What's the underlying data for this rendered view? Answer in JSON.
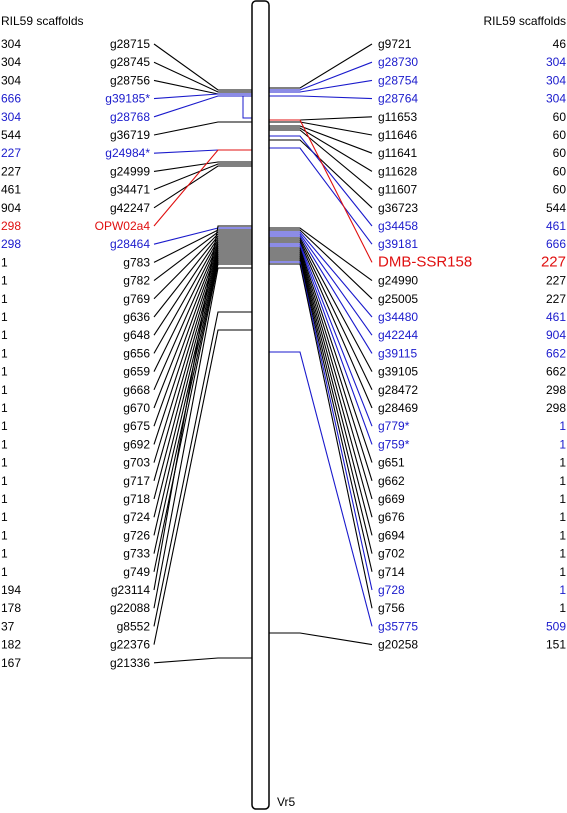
{
  "header": {
    "left": "RIL59 scaffolds",
    "right": "RIL59 scaffolds"
  },
  "chromosome_label": "Vr5",
  "colors": {
    "default": "#000000",
    "blue": "#1a1acc",
    "red": "#e01010"
  },
  "left_markers": [
    {
      "scaffold": "304",
      "marker": "g28715",
      "color": "default"
    },
    {
      "scaffold": "304",
      "marker": "g28745",
      "color": "default"
    },
    {
      "scaffold": "304",
      "marker": "g28756",
      "color": "default"
    },
    {
      "scaffold": "666",
      "marker": "g39185*",
      "color": "blue"
    },
    {
      "scaffold": "304",
      "marker": "g28768",
      "color": "blue"
    },
    {
      "scaffold": "544",
      "marker": "g36719",
      "color": "default"
    },
    {
      "scaffold": "227",
      "marker": "g24984*",
      "color": "blue"
    },
    {
      "scaffold": "227",
      "marker": "g24999",
      "color": "default"
    },
    {
      "scaffold": "461",
      "marker": "g34471",
      "color": "default"
    },
    {
      "scaffold": "904",
      "marker": "g42247",
      "color": "default"
    },
    {
      "scaffold": "298",
      "marker": "OPW02a4",
      "color": "red"
    },
    {
      "scaffold": "298",
      "marker": "g28464",
      "color": "blue"
    },
    {
      "scaffold": "1",
      "marker": "g783",
      "color": "default"
    },
    {
      "scaffold": "1",
      "marker": "g782",
      "color": "default"
    },
    {
      "scaffold": "1",
      "marker": "g769",
      "color": "default"
    },
    {
      "scaffold": "1",
      "marker": "g636",
      "color": "default"
    },
    {
      "scaffold": "1",
      "marker": "g648",
      "color": "default"
    },
    {
      "scaffold": "1",
      "marker": "g656",
      "color": "default"
    },
    {
      "scaffold": "1",
      "marker": "g659",
      "color": "default"
    },
    {
      "scaffold": "1",
      "marker": "g668",
      "color": "default"
    },
    {
      "scaffold": "1",
      "marker": "g670",
      "color": "default"
    },
    {
      "scaffold": "1",
      "marker": "g675",
      "color": "default"
    },
    {
      "scaffold": "1",
      "marker": "g692",
      "color": "default"
    },
    {
      "scaffold": "1",
      "marker": "g703",
      "color": "default"
    },
    {
      "scaffold": "1",
      "marker": "g717",
      "color": "default"
    },
    {
      "scaffold": "1",
      "marker": "g718",
      "color": "default"
    },
    {
      "scaffold": "1",
      "marker": "g724",
      "color": "default"
    },
    {
      "scaffold": "1",
      "marker": "g726",
      "color": "default"
    },
    {
      "scaffold": "1",
      "marker": "g733",
      "color": "default"
    },
    {
      "scaffold": "1",
      "marker": "g749",
      "color": "default"
    },
    {
      "scaffold": "194",
      "marker": "g23114",
      "color": "default"
    },
    {
      "scaffold": "178",
      "marker": "g22088",
      "color": "default"
    },
    {
      "scaffold": "37",
      "marker": "g8552",
      "color": "default"
    },
    {
      "scaffold": "182",
      "marker": "g22376",
      "color": "default"
    },
    {
      "scaffold": "167",
      "marker": "g21336",
      "color": "default"
    }
  ],
  "right_markers": [
    {
      "marker": "g9721",
      "scaffold": "46",
      "color": "default"
    },
    {
      "marker": "g28730",
      "scaffold": "304",
      "color": "blue"
    },
    {
      "marker": "g28754",
      "scaffold": "304",
      "color": "blue"
    },
    {
      "marker": "g28764",
      "scaffold": "304",
      "color": "blue"
    },
    {
      "marker": "g11653",
      "scaffold": "60",
      "color": "default"
    },
    {
      "marker": "g11646",
      "scaffold": "60",
      "color": "default"
    },
    {
      "marker": "g11641",
      "scaffold": "60",
      "color": "default"
    },
    {
      "marker": "g11628",
      "scaffold": "60",
      "color": "default"
    },
    {
      "marker": "g11607",
      "scaffold": "60",
      "color": "default"
    },
    {
      "marker": "g36723",
      "scaffold": "544",
      "color": "default"
    },
    {
      "marker": "g34458",
      "scaffold": "461",
      "color": "blue"
    },
    {
      "marker": "g39181",
      "scaffold": "666",
      "color": "blue"
    },
    {
      "marker": "DMB-SSR158",
      "scaffold": "227",
      "color": "red",
      "big": true
    },
    {
      "marker": "g24990",
      "scaffold": "227",
      "color": "default"
    },
    {
      "marker": "g25005",
      "scaffold": "227",
      "color": "default"
    },
    {
      "marker": "g34480",
      "scaffold": "461",
      "color": "blue"
    },
    {
      "marker": "g42244",
      "scaffold": "904",
      "color": "blue"
    },
    {
      "marker": "g39115",
      "scaffold": "662",
      "color": "blue"
    },
    {
      "marker": "g39105",
      "scaffold": "662",
      "color": "default"
    },
    {
      "marker": "g28472",
      "scaffold": "298",
      "color": "default"
    },
    {
      "marker": "g28469",
      "scaffold": "298",
      "color": "default"
    },
    {
      "marker": "g779*",
      "scaffold": "1",
      "color": "blue"
    },
    {
      "marker": "g759*",
      "scaffold": "1",
      "color": "blue"
    },
    {
      "marker": "g651",
      "scaffold": "1",
      "color": "default"
    },
    {
      "marker": "g662",
      "scaffold": "1",
      "color": "default"
    },
    {
      "marker": "g669",
      "scaffold": "1",
      "color": "default"
    },
    {
      "marker": "g676",
      "scaffold": "1",
      "color": "default"
    },
    {
      "marker": "g694",
      "scaffold": "1",
      "color": "default"
    },
    {
      "marker": "g702",
      "scaffold": "1",
      "color": "default"
    },
    {
      "marker": "g714",
      "scaffold": "1",
      "color": "default"
    },
    {
      "marker": "g728",
      "scaffold": "1",
      "color": "blue"
    },
    {
      "marker": "g756",
      "scaffold": "1",
      "color": "default"
    },
    {
      "marker": "g35775",
      "scaffold": "509",
      "color": "blue"
    },
    {
      "marker": "g20258",
      "scaffold": "151",
      "color": "default"
    }
  ]
}
